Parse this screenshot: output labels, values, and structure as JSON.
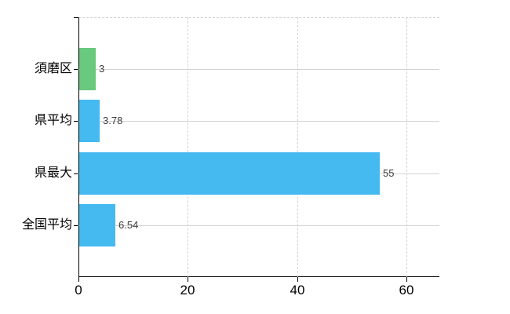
{
  "chart_data": {
    "type": "bar",
    "orientation": "horizontal",
    "title": "",
    "xlabel": "",
    "ylabel": "",
    "categories": [
      "須磨区",
      "県平均",
      "県最大",
      "全国平均"
    ],
    "values": [
      3,
      3.78,
      55,
      6.54
    ],
    "value_labels": [
      "3",
      "3.78",
      "55",
      "6.54"
    ],
    "bar_colors": [
      "#69c97f",
      "#44baf1",
      "#44baf1",
      "#44baf1"
    ],
    "x_ticks": [
      0,
      20,
      40,
      60
    ],
    "x_tick_labels": [
      "0",
      "20",
      "40",
      "60"
    ],
    "xlim": [
      0,
      66
    ],
    "grid": true,
    "legend": false
  },
  "colors": {
    "background": "#ffffff",
    "axis": "#000000",
    "grid_solid": "#d4d4d4",
    "grid_dashed": "#d2d2d2",
    "value_label": "#3d3d3d",
    "tick_label": "#000000",
    "bar_green": "#69c97f",
    "bar_blue": "#44baf1"
  }
}
